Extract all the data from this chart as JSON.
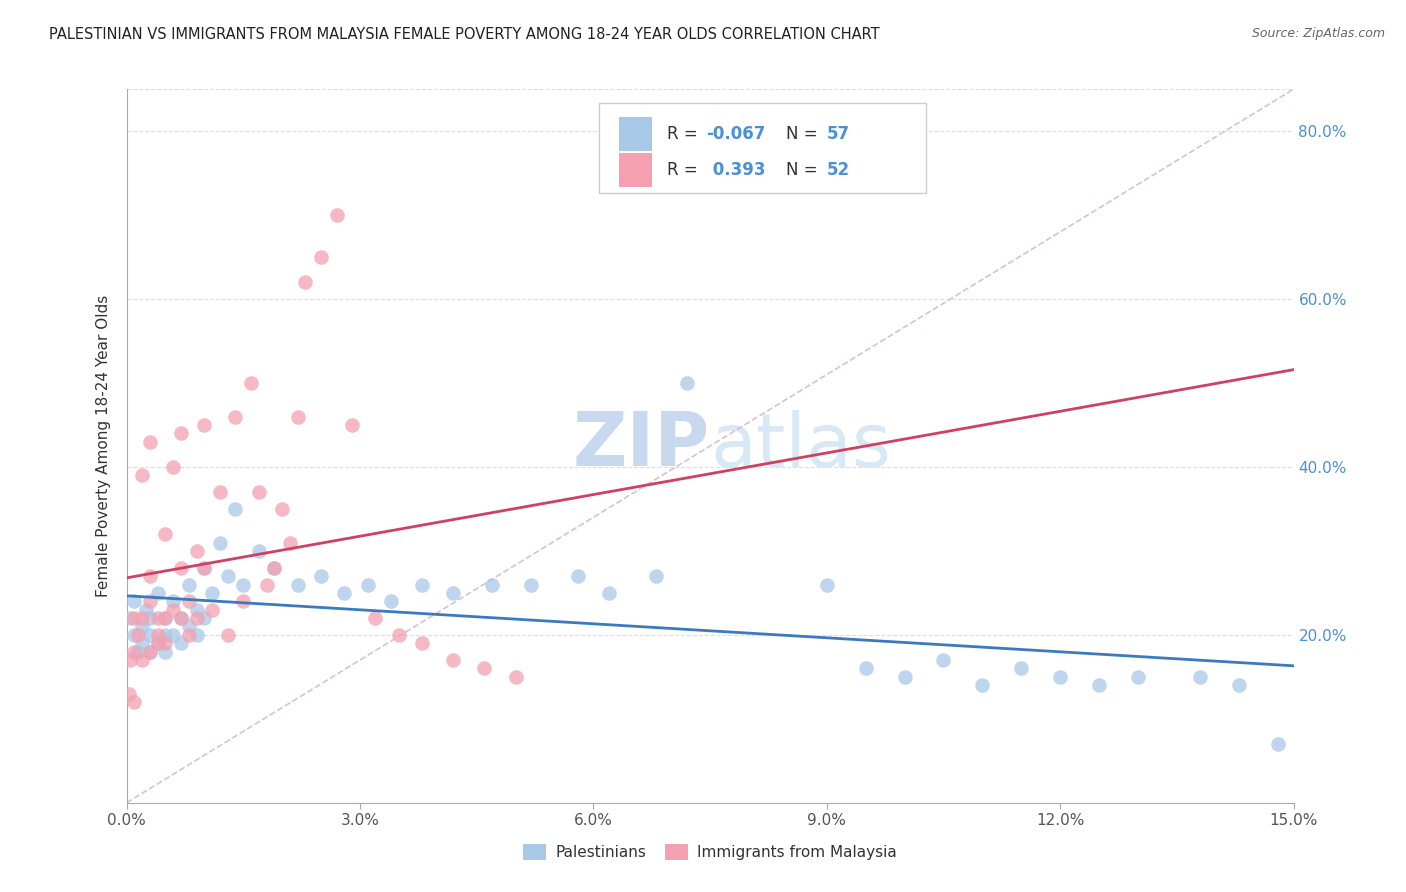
{
  "title": "PALESTINIAN VS IMMIGRANTS FROM MALAYSIA FEMALE POVERTY AMONG 18-24 YEAR OLDS CORRELATION CHART",
  "source": "Source: ZipAtlas.com",
  "ylabel": "Female Poverty Among 18-24 Year Olds",
  "xlim": [
    0,
    0.15
  ],
  "ylim": [
    0,
    0.85
  ],
  "xticks": [
    0.0,
    0.03,
    0.06,
    0.09,
    0.12,
    0.15
  ],
  "yticks": [
    0.0,
    0.2,
    0.4,
    0.6,
    0.8
  ],
  "ytick_labels": [
    "",
    "20.0%",
    "40.0%",
    "60.0%",
    "80.0%"
  ],
  "xtick_labels": [
    "0.0%",
    "3.0%",
    "6.0%",
    "9.0%",
    "12.0%",
    "15.0%"
  ],
  "color_blue": "#a8c8e8",
  "color_pink": "#f4a0b0",
  "color_blue_line": "#3a7abf",
  "color_pink_line": "#d04060",
  "color_ref_line": "#d0b8c8",
  "watermark_color": "#c8d8ee",
  "right_axis_color": "#4a90d9",
  "legend_text_color": "#4a90d9",
  "legend_n_color": "#333333",
  "palestinians_x": [
    0.0005,
    0.001,
    0.001,
    0.0015,
    0.002,
    0.002,
    0.0025,
    0.003,
    0.003,
    0.003,
    0.004,
    0.004,
    0.005,
    0.005,
    0.005,
    0.006,
    0.006,
    0.007,
    0.007,
    0.008,
    0.008,
    0.009,
    0.009,
    0.01,
    0.01,
    0.011,
    0.012,
    0.013,
    0.014,
    0.015,
    0.017,
    0.019,
    0.022,
    0.025,
    0.028,
    0.031,
    0.034,
    0.038,
    0.042,
    0.047,
    0.052,
    0.058,
    0.062,
    0.068,
    0.072,
    0.09,
    0.095,
    0.1,
    0.105,
    0.11,
    0.115,
    0.12,
    0.125,
    0.13,
    0.138,
    0.143,
    0.148
  ],
  "palestinians_y": [
    0.22,
    0.24,
    0.2,
    0.18,
    0.21,
    0.19,
    0.23,
    0.2,
    0.22,
    0.18,
    0.25,
    0.19,
    0.22,
    0.2,
    0.18,
    0.24,
    0.2,
    0.22,
    0.19,
    0.26,
    0.21,
    0.23,
    0.2,
    0.28,
    0.22,
    0.25,
    0.31,
    0.27,
    0.35,
    0.26,
    0.3,
    0.28,
    0.26,
    0.27,
    0.25,
    0.26,
    0.24,
    0.26,
    0.25,
    0.26,
    0.26,
    0.27,
    0.25,
    0.27,
    0.5,
    0.26,
    0.16,
    0.15,
    0.17,
    0.14,
    0.16,
    0.15,
    0.14,
    0.15,
    0.15,
    0.14,
    0.07
  ],
  "malaysia_x": [
    0.0003,
    0.0005,
    0.001,
    0.001,
    0.001,
    0.0015,
    0.002,
    0.002,
    0.002,
    0.003,
    0.003,
    0.003,
    0.003,
    0.004,
    0.004,
    0.004,
    0.005,
    0.005,
    0.005,
    0.006,
    0.006,
    0.007,
    0.007,
    0.007,
    0.008,
    0.008,
    0.009,
    0.009,
    0.01,
    0.01,
    0.011,
    0.012,
    0.013,
    0.014,
    0.015,
    0.016,
    0.017,
    0.018,
    0.019,
    0.02,
    0.021,
    0.022,
    0.023,
    0.025,
    0.027,
    0.029,
    0.032,
    0.035,
    0.038,
    0.042,
    0.046,
    0.05
  ],
  "malaysia_y": [
    0.13,
    0.17,
    0.22,
    0.18,
    0.12,
    0.2,
    0.17,
    0.22,
    0.39,
    0.18,
    0.24,
    0.27,
    0.43,
    0.2,
    0.22,
    0.19,
    0.32,
    0.19,
    0.22,
    0.4,
    0.23,
    0.28,
    0.22,
    0.44,
    0.2,
    0.24,
    0.3,
    0.22,
    0.28,
    0.45,
    0.23,
    0.37,
    0.2,
    0.46,
    0.24,
    0.5,
    0.37,
    0.26,
    0.28,
    0.35,
    0.31,
    0.46,
    0.62,
    0.65,
    0.7,
    0.45,
    0.22,
    0.2,
    0.19,
    0.17,
    0.16,
    0.15
  ]
}
